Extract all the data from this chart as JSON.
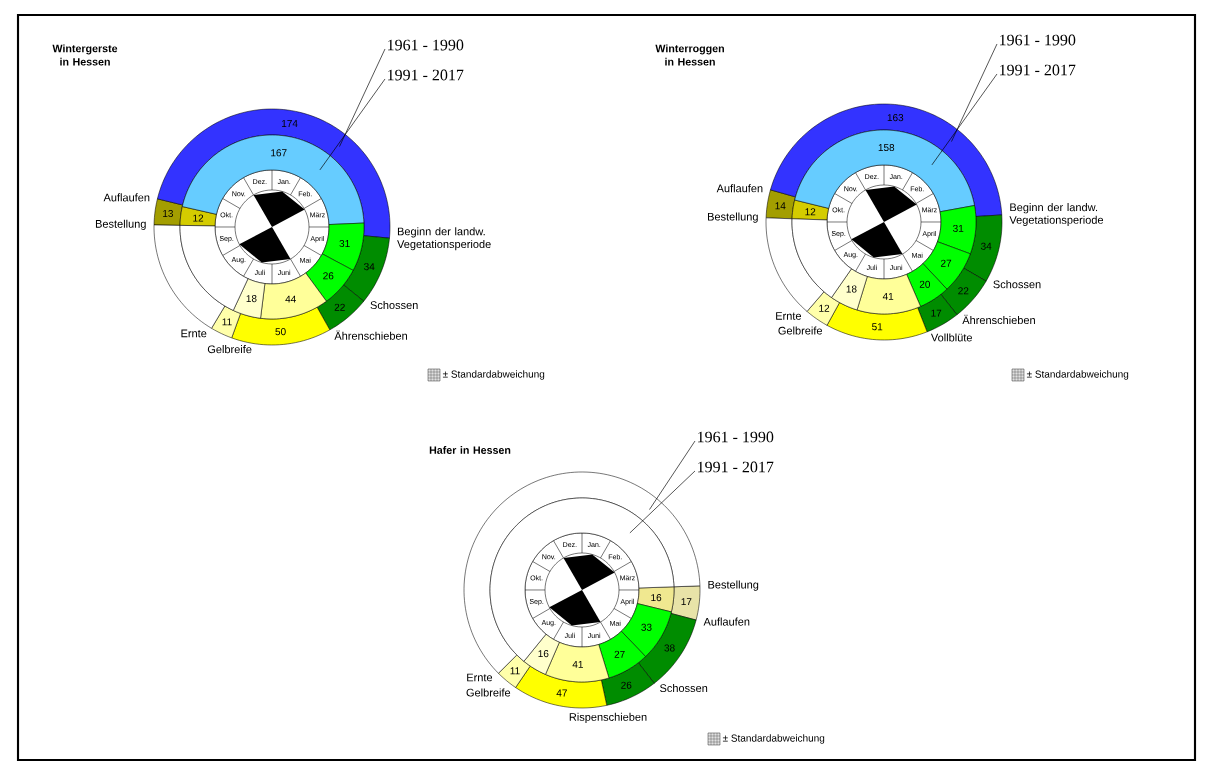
{
  "chart_data": [
    {
      "type": "donut",
      "title": "Wintergerste in Hessen",
      "categories": [
        "Bestellung",
        "Auflaufen",
        "Beginn der landw. Vegetationsperiode",
        "Schossen",
        "Ährenschieben",
        "Gelbreife",
        "Ernte"
      ],
      "series": [
        {
          "name": "1961 - 1990",
          "values": [
            13,
            174,
            34,
            22,
            50,
            11,
            61
          ],
          "colors": [
            "#a39e00",
            "#3333ff",
            "#008c00",
            "#008c00",
            "#ffff00",
            "#ffffaa",
            "#ffffff"
          ],
          "value_labels": [
            "13",
            "174",
            "34",
            "22",
            "50",
            "11",
            null
          ]
        },
        {
          "name": "1991 - 2017",
          "values": [
            12,
            167,
            31,
            26,
            44,
            18,
            67
          ],
          "colors": [
            "#d4cc00",
            "#66ccff",
            "#00ff00",
            "#00ff00",
            "#ffff99",
            "#ffffcc",
            "#ffffff"
          ],
          "value_labels": [
            "12",
            "167",
            "31",
            "26",
            "44",
            "18",
            null
          ]
        }
      ],
      "annotations": [
        "Jan.",
        "Feb.",
        "März",
        "April",
        "Mai",
        "Juni",
        "Juli",
        "Aug.",
        "Sep.",
        "Okt.",
        "Nov.",
        "Dez.",
        "± Standardabweichung"
      ]
    },
    {
      "type": "donut",
      "title": "Winterroggen in Hessen",
      "categories": [
        "Bestellung",
        "Auflaufen",
        "Beginn der landw. Vegetationsperiode",
        "Schossen",
        "Ährenschieben",
        "Vollblüte",
        "Gelbreife",
        "Ernte"
      ],
      "series": [
        {
          "name": "1961 - 1990",
          "values": [
            14,
            163,
            34,
            22,
            17,
            51,
            12,
            52
          ],
          "colors": [
            "#a39e00",
            "#3333ff",
            "#008c00",
            "#008c00",
            "#008c00",
            "#ffff00",
            "#ffffaa",
            "#ffffff"
          ],
          "value_labels": [
            "14",
            "163",
            "34",
            "22",
            "17",
            "51",
            "12",
            null
          ]
        },
        {
          "name": "1991 - 2017",
          "values": [
            12,
            158,
            31,
            27,
            20,
            41,
            18,
            58
          ],
          "colors": [
            "#d4cc00",
            "#66ccff",
            "#00ff00",
            "#00ff00",
            "#00ff00",
            "#ffff99",
            "#ffffcc",
            "#ffffff"
          ],
          "value_labels": [
            "12",
            "158",
            "31",
            "27",
            "20",
            "41",
            "18",
            null
          ]
        }
      ],
      "annotations": [
        "Jan.",
        "Feb.",
        "März",
        "April",
        "Mai",
        "Juni",
        "Juli",
        "Aug.",
        "Sep.",
        "Okt.",
        "Nov.",
        "Dez.",
        "± Standardabweichung"
      ]
    },
    {
      "type": "donut",
      "title": "Hafer in Hessen",
      "categories": [
        "Bestellung",
        "Auflaufen",
        "Schossen",
        "Rispenschieben",
        "Gelbreife",
        "Ernte"
      ],
      "series": [
        {
          "name": "1961 - 1990",
          "values": [
            17,
            38,
            26,
            47,
            11,
            226
          ],
          "colors": [
            "#e8e3a8",
            "#008c00",
            "#008c00",
            "#ffff00",
            "#ffffaa",
            "#ffffff"
          ],
          "value_labels": [
            "17",
            "38",
            "26",
            "47",
            "11",
            null
          ]
        },
        {
          "name": "1991 - 2017",
          "values": [
            16,
            33,
            27,
            41,
            16,
            232
          ],
          "colors": [
            "#f0e890",
            "#00ff00",
            "#00ff00",
            "#ffff99",
            "#ffffcc",
            "#ffffff"
          ],
          "value_labels": [
            "16",
            "33",
            "27",
            "41",
            "16",
            null
          ]
        }
      ],
      "annotations": [
        "Jan.",
        "Feb.",
        "März",
        "April",
        "Mai",
        "Juni",
        "Juli",
        "Aug.",
        "Sep.",
        "Okt.",
        "Nov.",
        "Dez.",
        "± Standardabweichung"
      ]
    }
  ]
}
